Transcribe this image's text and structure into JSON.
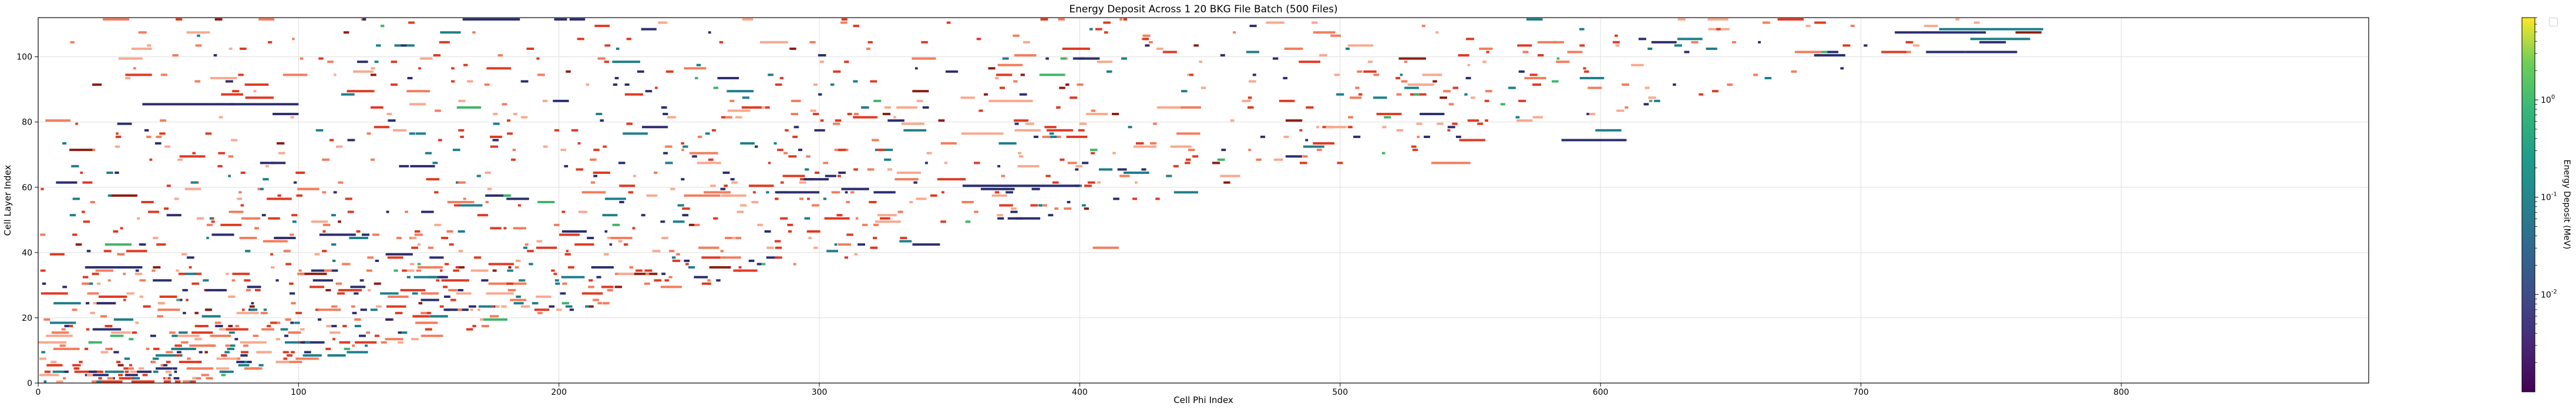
{
  "chart_data": {
    "type": "heatmap",
    "title": "Energy Deposit Across 1 20 BKG File Batch (500 Files)",
    "xlabel": "Cell Phi Index",
    "ylabel": "Cell Layer Index",
    "xlim": [
      0,
      895
    ],
    "ylim": [
      0,
      112
    ],
    "xticks": [
      "0",
      "100",
      "200",
      "300",
      "400",
      "500",
      "600",
      "700",
      "800"
    ],
    "yticks": [
      "0",
      "20",
      "40",
      "60",
      "80",
      "100"
    ],
    "grid": true,
    "legend": "top-right (empty)",
    "colorbar": {
      "label": "Energy Deposit (MeV)",
      "scale": "log",
      "colormap": "viridis",
      "ticks": [
        "10^0",
        "10^-1",
        "10^-2"
      ],
      "tick_values": [
        1,
        0.1,
        0.01
      ],
      "range": [
        0.001,
        7
      ]
    },
    "overlay_colormap": "reds",
    "colors": {
      "dark": "#2b2e6e",
      "teal": "#1e7f8a",
      "green": "#3fb56a",
      "red": "#e03a23",
      "orange": "#f47d5c",
      "salmon": "#f9a98e",
      "brown": "#8b1d12",
      "grid": "#dedede"
    },
    "long_tracks": [
      {
        "x0": 40,
        "x1": 100,
        "y": 85,
        "color": "dark"
      },
      {
        "x0": 90,
        "x1": 100,
        "y": 82,
        "color": "dark"
      },
      {
        "x0": 18,
        "x1": 40,
        "y": 35,
        "color": "dark"
      },
      {
        "x0": 108,
        "x1": 122,
        "y": 45,
        "color": "dark"
      },
      {
        "x0": 355,
        "x1": 400,
        "y": 60,
        "color": "dark"
      },
      {
        "x0": 362,
        "x1": 375,
        "y": 59,
        "color": "dark"
      },
      {
        "x0": 283,
        "x1": 300,
        "y": 58,
        "color": "dark"
      },
      {
        "x0": 585,
        "x1": 610,
        "y": 74,
        "color": "dark"
      },
      {
        "x0": 598,
        "x1": 608,
        "y": 77,
        "color": "teal"
      },
      {
        "x0": 730,
        "x1": 770,
        "y": 108,
        "color": "teal"
      },
      {
        "x0": 713,
        "x1": 748,
        "y": 107,
        "color": "dark"
      },
      {
        "x0": 742,
        "x1": 765,
        "y": 105,
        "color": "teal"
      },
      {
        "x0": 682,
        "x1": 694,
        "y": 100,
        "color": "dark"
      },
      {
        "x0": 725,
        "x1": 740,
        "y": 101,
        "color": "dark"
      },
      {
        "x0": 740,
        "x1": 760,
        "y": 101,
        "color": "dark"
      },
      {
        "x0": 163,
        "x1": 185,
        "y": 111,
        "color": "dark"
      },
      {
        "x0": 365,
        "x1": 382,
        "y": 86,
        "color": "salmon"
      },
      {
        "x0": 248,
        "x1": 262,
        "y": 57,
        "color": "orange"
      },
      {
        "x0": 405,
        "x1": 415,
        "y": 41,
        "color": "orange"
      },
      {
        "x0": 375,
        "x1": 385,
        "y": 77,
        "color": "salmon"
      },
      {
        "x0": 535,
        "x1": 550,
        "y": 67,
        "color": "orange"
      }
    ],
    "scatter": {
      "count": 1400,
      "seed": 20,
      "density_boundary": "x < 60 + y * 6.6",
      "palette_weights": {
        "red": 0.3,
        "orange": 0.2,
        "salmon": 0.16,
        "dark": 0.15,
        "teal": 0.12,
        "green": 0.03,
        "brown": 0.04
      }
    }
  }
}
